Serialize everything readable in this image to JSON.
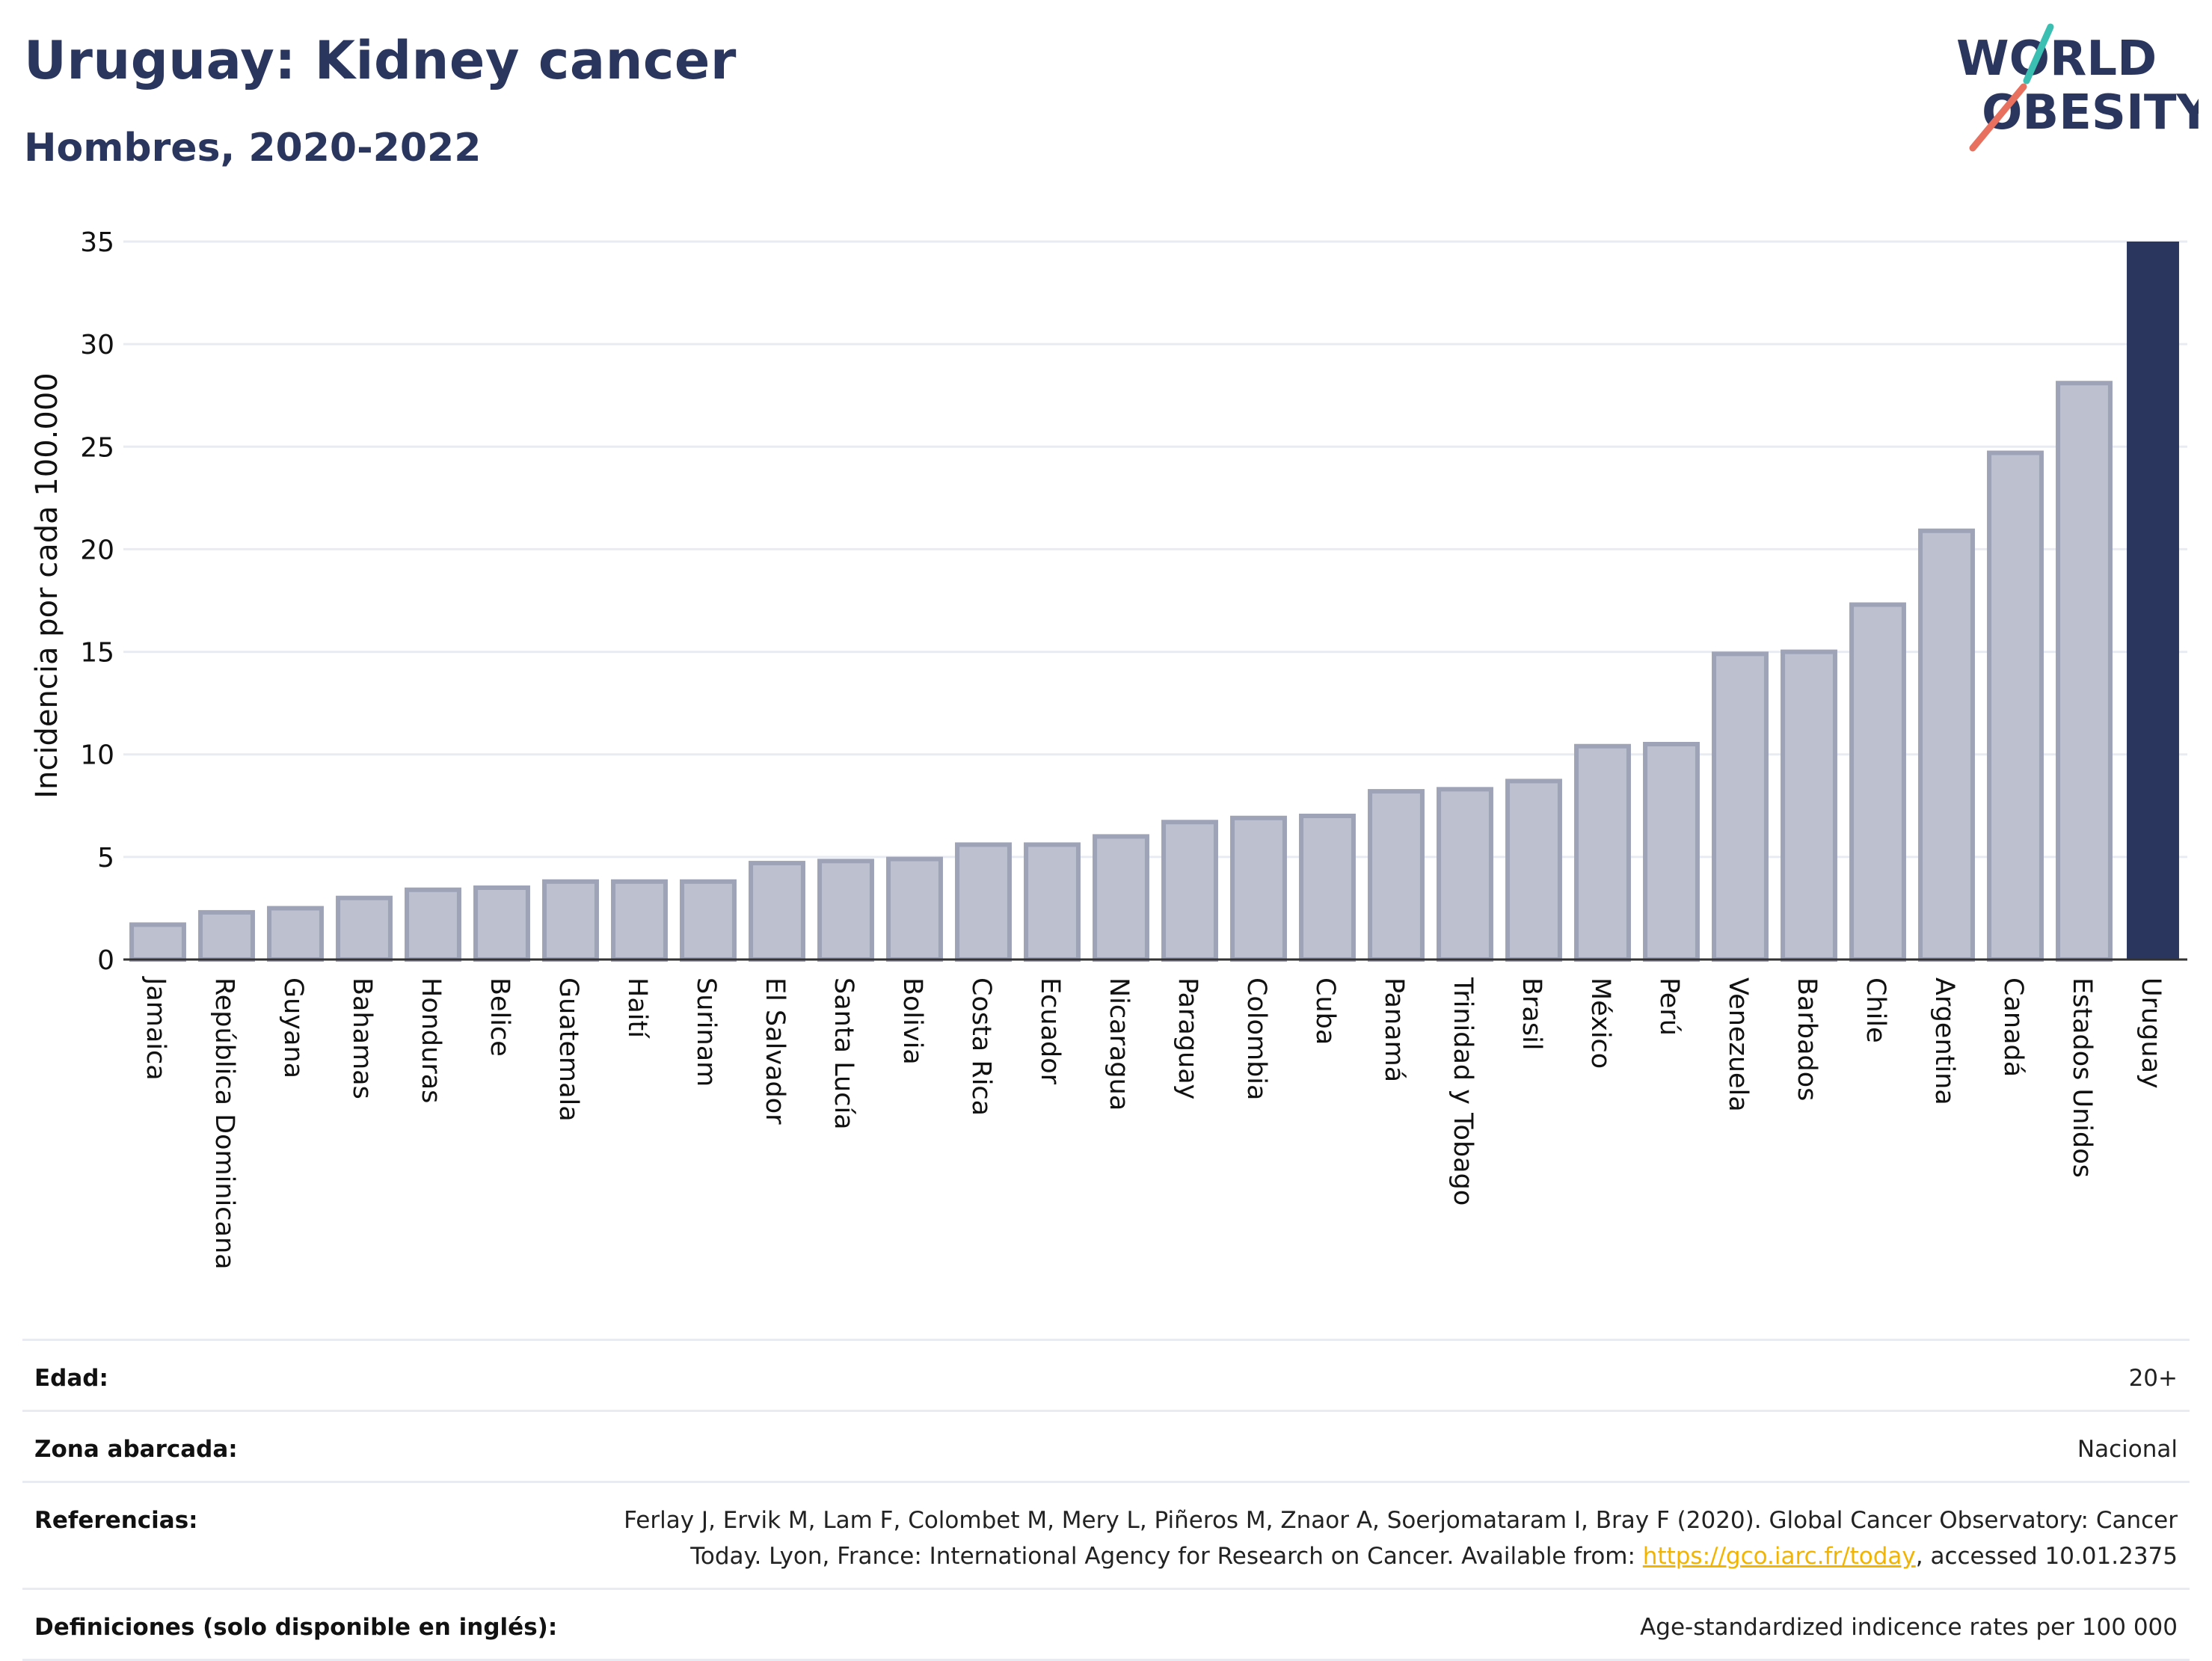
{
  "header": {
    "title": "Uruguay: Kidney cancer",
    "subtitle": "Hombres, 2020-2022"
  },
  "logo": {
    "line1": "WORLD",
    "line2": "OBESITY",
    "icon": "world-obesity-logo-slash"
  },
  "colors": {
    "title": "#2b365e",
    "bar_default": "#bcc0cf",
    "bar_default_stroke": "#9ea3b8",
    "bar_highlight": "#2b365e",
    "gridline": "#e8ebf2",
    "logo_teal": "#3bbfb2",
    "logo_coral": "#e8705f",
    "link": "#f2b400"
  },
  "chart_data": {
    "type": "bar",
    "ylabel": "Incidencia por cada 100.000",
    "ylim": [
      0,
      35
    ],
    "yticks": [
      0,
      5,
      10,
      15,
      20,
      25,
      30,
      35
    ],
    "grid": true,
    "categories": [
      "Jamaica",
      "República Dominicana",
      "Guyana",
      "Bahamas",
      "Honduras",
      "Belice",
      "Guatemala",
      "Haití",
      "Surinam",
      "El Salvador",
      "Santa Lucía",
      "Bolivia",
      "Costa Rica",
      "Ecuador",
      "Nicaragua",
      "Paraguay",
      "Colombia",
      "Cuba",
      "Panamá",
      "Trinidad y Tobago",
      "Brasil",
      "México",
      "Perú",
      "Venezuela",
      "Barbados",
      "Chile",
      "Argentina",
      "Canadá",
      "Estados Unidos",
      "Uruguay"
    ],
    "values": [
      1.7,
      2.3,
      2.5,
      3.0,
      3.4,
      3.5,
      3.8,
      3.8,
      3.8,
      4.7,
      4.8,
      4.9,
      5.6,
      5.6,
      6.0,
      6.7,
      6.9,
      7.0,
      8.2,
      8.3,
      8.7,
      10.4,
      10.5,
      14.9,
      15.0,
      17.3,
      20.9,
      24.7,
      28.1,
      35.0
    ],
    "highlight": "Uruguay"
  },
  "meta": {
    "rows": [
      {
        "label": "Edad:",
        "value": "20+"
      },
      {
        "label": "Zona abarcada:",
        "value": "Nacional"
      },
      {
        "label": "Referencias:",
        "value_before": "Ferlay J, Ervik M, Lam F, Colombet M, Mery L, Piñeros M, Znaor A, Soerjomataram I, Bray F (2020). Global Cancer Observatory: Cancer Today. Lyon, France: International Agency for Research on Cancer. Available from: ",
        "link": "https://gco.iarc.fr/today",
        "value_after": ", accessed 10.01.2375"
      },
      {
        "label": "Definiciones (solo disponible en inglés):",
        "value": "Age-standardized indicence rates per 100 000"
      }
    ]
  }
}
